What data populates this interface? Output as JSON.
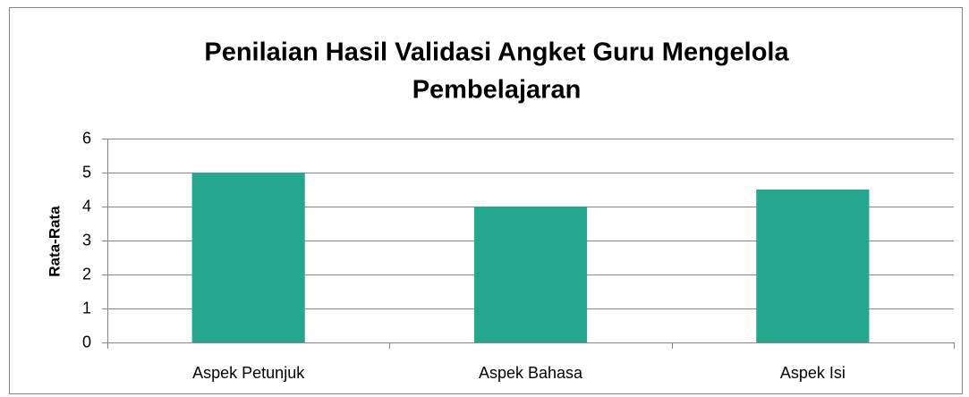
{
  "chart_data": {
    "type": "bar",
    "title": [
      "Penilaian Hasil Validasi Angket Guru Mengelola",
      "Pembelajaran"
    ],
    "y_label": "Rata-Rata",
    "categories": [
      "Aspek Petunjuk",
      "Aspek Bahasa",
      "Aspek Isi"
    ],
    "values": [
      5,
      4,
      4.5
    ],
    "color": "#25a68f",
    "ylim": [
      0,
      6
    ],
    "yticks": [
      0,
      1,
      2,
      3,
      4,
      5,
      6
    ],
    "grid": true
  }
}
